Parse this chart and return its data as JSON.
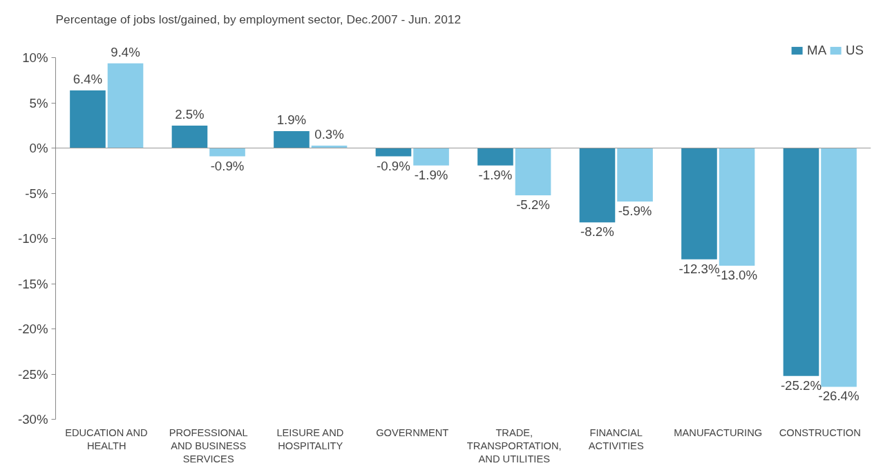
{
  "chart_data": {
    "type": "bar",
    "title": "Percentage of jobs lost/gained, by employment sector, Dec.2007 - Jun. 2012",
    "categories": [
      "EDUCATION AND\nHEALTH",
      "PROFESSIONAL\nAND BUSINESS\nSERVICES",
      "LEISURE AND\nHOSPITALITY",
      "GOVERNMENT",
      "TRADE,\nTRANSPORTATION,\nAND UTILITIES",
      "FINANCIAL\nACTIVITIES",
      "MANUFACTURING",
      "CONSTRUCTION"
    ],
    "series": [
      {
        "name": "MA",
        "color": "#318db3",
        "values": [
          6.4,
          2.5,
          1.9,
          -0.9,
          -1.9,
          -8.2,
          -12.3,
          -25.2
        ],
        "value_labels": [
          "6.4%",
          "2.5%",
          "1.9%",
          "-0.9%",
          "-1.9%",
          "-8.2%",
          "-12.3%",
          "-25.2%"
        ]
      },
      {
        "name": "US",
        "color": "#89cdea",
        "values": [
          9.4,
          -0.9,
          0.3,
          -1.9,
          -5.2,
          -5.9,
          -13.0,
          -26.4
        ],
        "value_labels": [
          "9.4%",
          "-0.9%",
          "0.3%",
          "-1.9%",
          "-5.2%",
          "-5.9%",
          "-13.0%",
          "-26.4%"
        ]
      }
    ],
    "ylim": [
      -30,
      10
    ],
    "yticks": [
      {
        "value": -30,
        "label": "-30%"
      },
      {
        "value": -25,
        "label": "-25%"
      },
      {
        "value": -20,
        "label": "-20%"
      },
      {
        "value": -15,
        "label": "-15%"
      },
      {
        "value": -10,
        "label": "-10%"
      },
      {
        "value": -5,
        "label": "-5%"
      },
      {
        "value": 0,
        "label": "0%"
      },
      {
        "value": 5,
        "label": "5%"
      },
      {
        "value": 10,
        "label": "10%"
      }
    ],
    "legend": "top right"
  }
}
